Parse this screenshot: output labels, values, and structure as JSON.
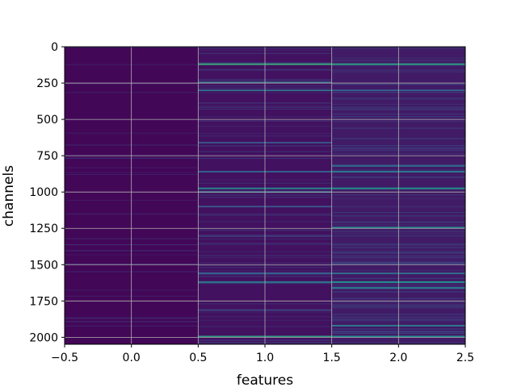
{
  "chart_data": {
    "type": "heatmap",
    "xlabel": "features",
    "ylabel": "channels",
    "xlim": [
      -0.5,
      2.5
    ],
    "ylim": [
      2048,
      0
    ],
    "y_inverted": true,
    "colormap": "viridis",
    "grid": true,
    "x_ticks": [
      -0.5,
      0.0,
      0.5,
      1.0,
      1.5,
      2.0,
      2.5
    ],
    "x_tick_labels": [
      "−0.5",
      "0.0",
      "0.5",
      "1.0",
      "1.5",
      "2.0",
      "2.5"
    ],
    "y_ticks": [
      0,
      250,
      500,
      750,
      1000,
      1250,
      1500,
      1750,
      2000
    ],
    "y_tick_labels": [
      "0",
      "250",
      "500",
      "750",
      "1000",
      "1250",
      "1500",
      "1750",
      "2000"
    ],
    "n_channels": 2048,
    "features": [
      0,
      1,
      2
    ],
    "base_value": [
      0.02,
      0.05,
      0.08
    ],
    "highlighted_channels": [
      {
        "feature": 1,
        "channel": 120,
        "value": 0.6
      },
      {
        "feature": 2,
        "channel": 120,
        "value": 0.55
      },
      {
        "feature": 1,
        "channel": 245,
        "value": 0.35
      },
      {
        "feature": 1,
        "channel": 300,
        "value": 0.35
      },
      {
        "feature": 2,
        "channel": 300,
        "value": 0.3
      },
      {
        "feature": 1,
        "channel": 660,
        "value": 0.25
      },
      {
        "feature": 2,
        "channel": 820,
        "value": 0.35
      },
      {
        "feature": 1,
        "channel": 860,
        "value": 0.3
      },
      {
        "feature": 2,
        "channel": 860,
        "value": 0.4
      },
      {
        "feature": 1,
        "channel": 975,
        "value": 0.45
      },
      {
        "feature": 2,
        "channel": 975,
        "value": 0.5
      },
      {
        "feature": 1,
        "channel": 1000,
        "value": 0.35
      },
      {
        "feature": 1,
        "channel": 1100,
        "value": 0.25
      },
      {
        "feature": 2,
        "channel": 1245,
        "value": 0.45
      },
      {
        "feature": 1,
        "channel": 1560,
        "value": 0.3
      },
      {
        "feature": 2,
        "channel": 1560,
        "value": 0.35
      },
      {
        "feature": 1,
        "channel": 1620,
        "value": 0.4
      },
      {
        "feature": 2,
        "channel": 1620,
        "value": 0.5
      },
      {
        "feature": 2,
        "channel": 1660,
        "value": 0.4
      },
      {
        "feature": 2,
        "channel": 1920,
        "value": 0.4
      },
      {
        "feature": 1,
        "channel": 1995,
        "value": 0.55
      },
      {
        "feature": 2,
        "channel": 1995,
        "value": 0.5
      }
    ]
  }
}
